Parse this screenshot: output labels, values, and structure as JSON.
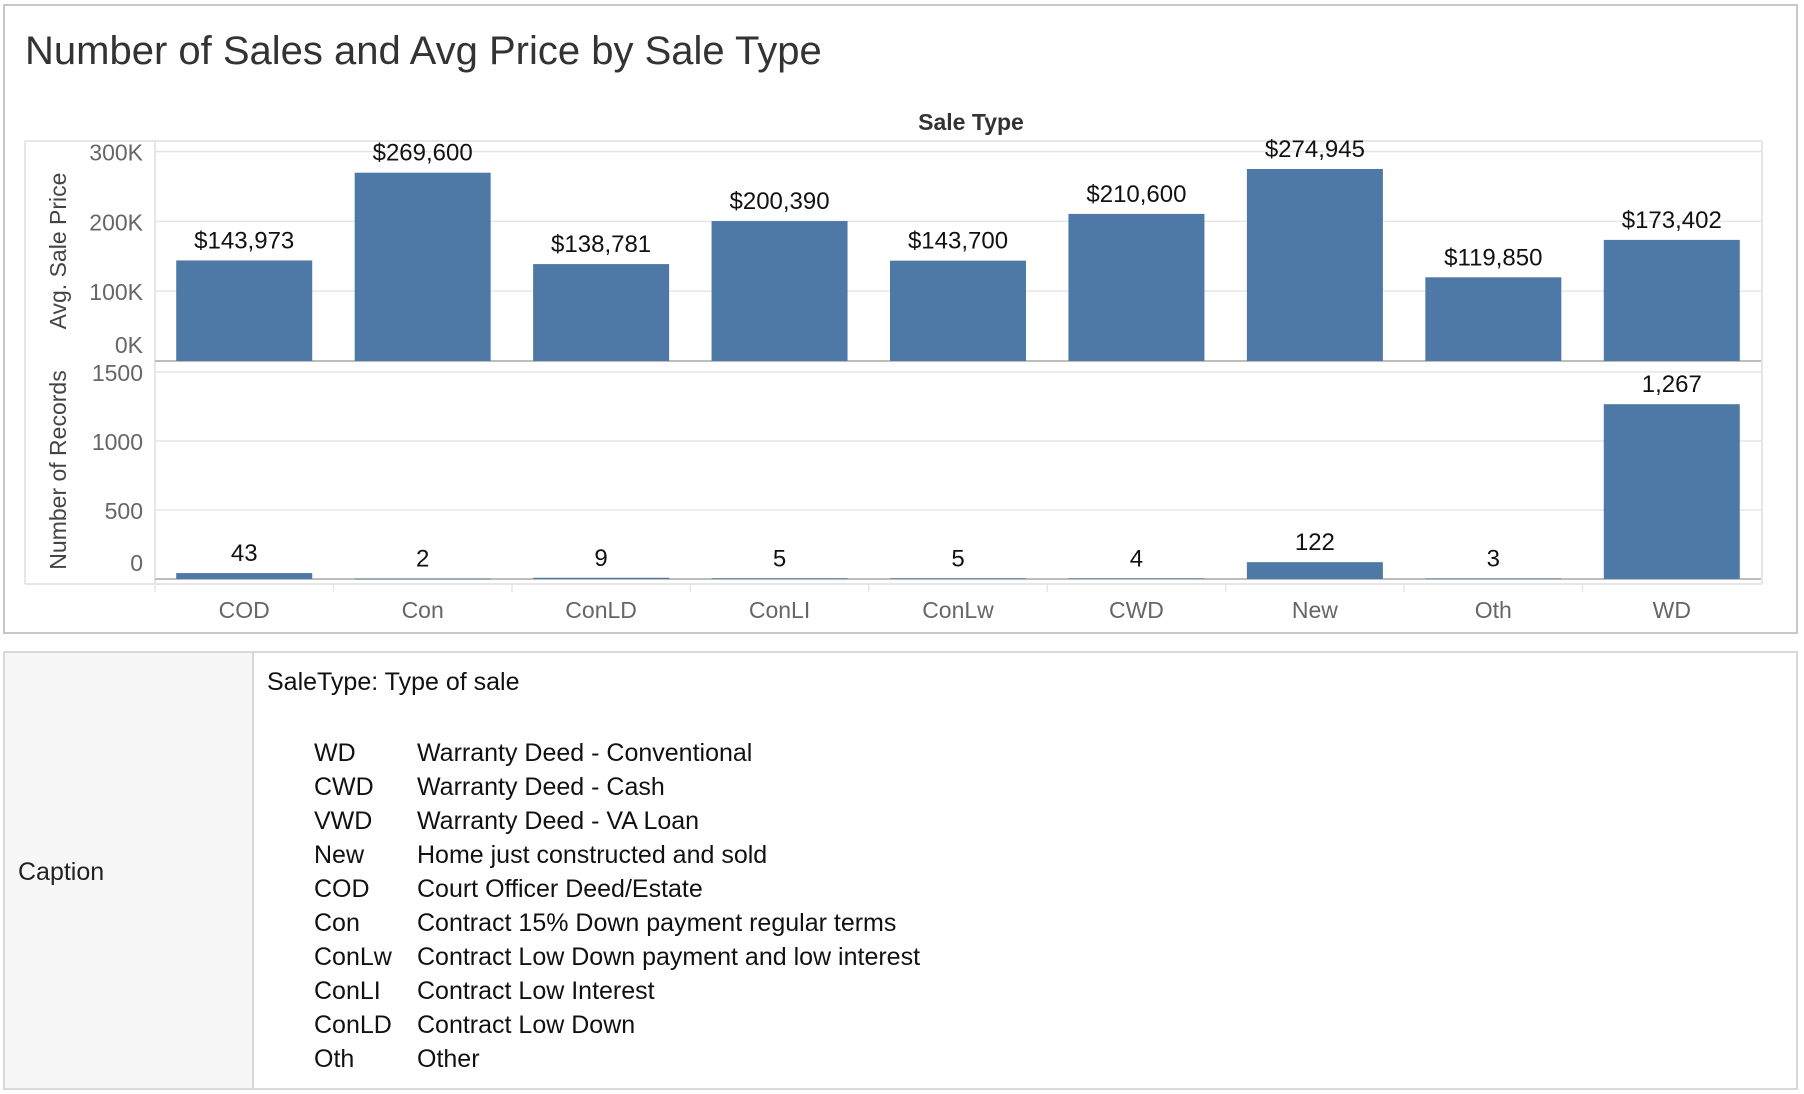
{
  "title": "Number of Sales and Avg Price by Sale Type",
  "colors": {
    "bar": "#4e79a7",
    "axis_text": "#666666",
    "grid": "#e6e6e6",
    "border": "#c8c8c8"
  },
  "chart_data": {
    "type": "bar",
    "title": "Number of Sales and Avg Price by Sale Type",
    "column_header": "Sale Type",
    "categories": [
      "COD",
      "Con",
      "ConLD",
      "ConLI",
      "ConLw",
      "CWD",
      "New",
      "Oth",
      "WD"
    ],
    "panels": [
      {
        "name": "Avg. Sale Price",
        "ylabel": "Avg. Sale Price",
        "ylim": [
          0,
          315000
        ],
        "yticks": [
          0,
          100000,
          200000,
          300000
        ],
        "ytick_labels": [
          "0K",
          "100K",
          "200K",
          "300K"
        ],
        "values": [
          143973,
          269600,
          138781,
          200390,
          143700,
          210600,
          274945,
          119850,
          173402
        ],
        "data_labels": [
          "$143,973",
          "$269,600",
          "$138,781",
          "$200,390",
          "$143,700",
          "$210,600",
          "$274,945",
          "$119,850",
          "$173,402"
        ]
      },
      {
        "name": "Number of Records",
        "ylabel": "Number of Records",
        "ylim": [
          0,
          1580
        ],
        "yticks": [
          0,
          500,
          1000,
          1500
        ],
        "ytick_labels": [
          "0",
          "500",
          "1000",
          "1500"
        ],
        "values": [
          43,
          2,
          9,
          5,
          5,
          4,
          122,
          3,
          1267
        ],
        "data_labels": [
          "43",
          "2",
          "9",
          "5",
          "5",
          "4",
          "122",
          "3",
          "1,267"
        ]
      }
    ],
    "grid": true,
    "legend": "none"
  },
  "caption": {
    "label": "Caption",
    "title": "SaleType: Type of sale",
    "entries": [
      {
        "code": "WD",
        "desc": "Warranty Deed - Conventional"
      },
      {
        "code": "CWD",
        "desc": "Warranty Deed - Cash"
      },
      {
        "code": "VWD",
        "desc": "Warranty Deed - VA Loan"
      },
      {
        "code": "New",
        "desc": "Home just constructed and sold"
      },
      {
        "code": "COD",
        "desc": "Court Officer Deed/Estate"
      },
      {
        "code": "Con",
        "desc": "Contract 15% Down payment regular terms"
      },
      {
        "code": "ConLw",
        "desc": "Contract Low Down payment and low interest"
      },
      {
        "code": "ConLI",
        "desc": "Contract Low Interest"
      },
      {
        "code": "ConLD",
        "desc": "Contract Low Down"
      },
      {
        "code": "Oth",
        "desc": "Other"
      }
    ]
  }
}
